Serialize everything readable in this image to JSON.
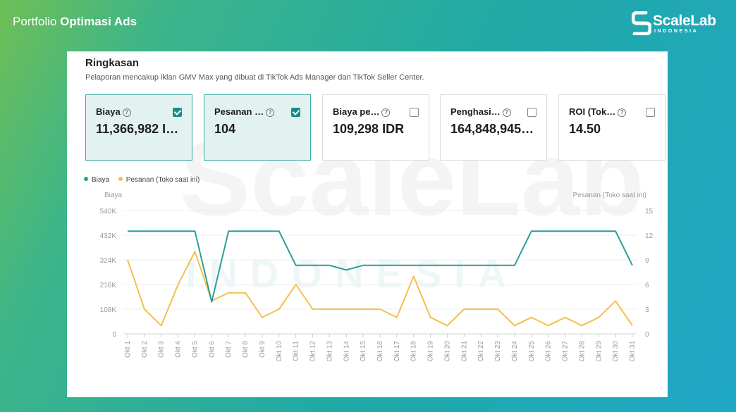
{
  "header": {
    "title_light": "Portfolio ",
    "title_bold": "Optimasi Ads"
  },
  "brand": {
    "name": "ScaleLab",
    "sub": "INDONESIA",
    "watermark_name": "ScaleLab",
    "watermark_sub": "INDONESIA"
  },
  "summary": {
    "title": "Ringkasan",
    "description": "Pelaporan mencakup iklan GMV Max yang dibuat di TikTok Ads Manager dan TikTok Seller Center."
  },
  "metrics": [
    {
      "label": "Biaya",
      "value": "11,366,982 I…",
      "selected": true
    },
    {
      "label": "Pesanan …",
      "value": "104",
      "selected": true
    },
    {
      "label": "Biaya pe…",
      "value": "109,298 IDR",
      "selected": false
    },
    {
      "label": "Penghasi…",
      "value": "164,848,945…",
      "selected": false
    },
    {
      "label": "ROI (Tok…",
      "value": "14.50",
      "selected": false
    }
  ],
  "colors": {
    "biaya": "#2b9e98",
    "pesanan": "#f2c14e",
    "selected_bg": "#e2f2f1",
    "check": "#178d87"
  },
  "chart_data": {
    "type": "line",
    "x": [
      "Okt 1",
      "Okt 2",
      "Okt 3",
      "Okt 4",
      "Okt 5",
      "Okt 6",
      "Okt 7",
      "Okt 8",
      "Okt 9",
      "Okt 10",
      "Okt 11",
      "Okt 12",
      "Okt 13",
      "Okt 14",
      "Okt 15",
      "Okt 16",
      "Okt 17",
      "Okt 18",
      "Okt 19",
      "Okt 20",
      "Okt 21",
      "Okt 22",
      "Okt 23",
      "Okt 24",
      "Okt 25",
      "Okt 26",
      "Okt 27",
      "Okt 28",
      "Okt 29",
      "Okt 30",
      "Okt 31"
    ],
    "series": [
      {
        "name": "Biaya",
        "axis": "left",
        "values": [
          450000,
          450000,
          450000,
          450000,
          450000,
          140000,
          450000,
          450000,
          450000,
          450000,
          300000,
          300000,
          300000,
          280000,
          300000,
          300000,
          300000,
          300000,
          300000,
          300000,
          300000,
          300000,
          300000,
          300000,
          450000,
          450000,
          450000,
          450000,
          450000,
          450000,
          300000
        ]
      },
      {
        "name": "Pesanan (Toko saat ini)",
        "axis": "right",
        "values": [
          9,
          3,
          1,
          6,
          10,
          4,
          5,
          5,
          2,
          3,
          6,
          3,
          3,
          3,
          3,
          3,
          2,
          7,
          2,
          1,
          3,
          3,
          3,
          1,
          2,
          1,
          2,
          1,
          2,
          4,
          1
        ]
      }
    ],
    "ylabel_left": "Biaya",
    "ylabel_right": "Pesanan (Toko saat ini)",
    "yticks_left": [
      "0",
      "108K",
      "216K",
      "324K",
      "432K",
      "540K"
    ],
    "yticks_right": [
      "0",
      "3",
      "6",
      "9",
      "12",
      "15"
    ],
    "ylim_left": [
      0,
      540000
    ],
    "ylim_right": [
      0,
      15
    ],
    "grid": true,
    "legend": "top-left"
  }
}
